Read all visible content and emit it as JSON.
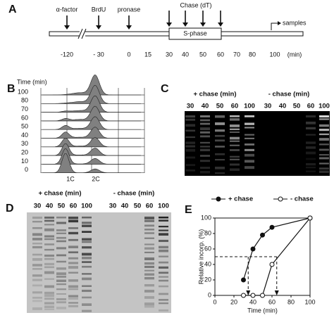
{
  "panels": {
    "a": {
      "label": "A",
      "chase": "Chase (dT)",
      "events": [
        "α-factor",
        "BrdU",
        "pronase"
      ],
      "phase": "S-phase",
      "samples": "samples",
      "times": [
        "-120",
        "- 30",
        "0",
        "15",
        "30",
        "40",
        "50",
        "60",
        "70",
        "80",
        "100",
        "(min)"
      ]
    },
    "b": {
      "label": "B",
      "axis_title": "Time (min)",
      "times": [
        "100",
        "80",
        "70",
        "60",
        "50",
        "40",
        "30",
        "20",
        "10",
        "0"
      ],
      "peaks": [
        "1C",
        "2C"
      ]
    },
    "c": {
      "label": "C",
      "groups": [
        {
          "title": "+ chase (min)",
          "lanes": [
            "30",
            "40",
            "50",
            "60",
            "100"
          ]
        },
        {
          "title": "- chase (min)",
          "lanes": [
            "30",
            "40",
            "50",
            "60",
            "100"
          ]
        }
      ]
    },
    "d": {
      "label": "D",
      "groups": [
        {
          "title": "+ chase (min)",
          "lanes": [
            "30",
            "40",
            "50",
            "60",
            "100"
          ]
        },
        {
          "title": "- chase (min)",
          "lanes": [
            "30",
            "40",
            "50",
            "60",
            "100"
          ]
        }
      ]
    },
    "e": {
      "label": "E"
    }
  },
  "chart_data": {
    "type": "line",
    "x_label": "Time (min)",
    "y_label": "Relative incorp. (%)",
    "x": [
      30,
      40,
      50,
      60,
      100
    ],
    "series": [
      {
        "name": "+ chase",
        "color": "#111111",
        "filled": true,
        "values": [
          20,
          60,
          78,
          88,
          100
        ]
      },
      {
        "name": "- chase",
        "color": "#111111",
        "filled": false,
        "values": [
          0,
          0,
          0,
          40,
          100
        ]
      }
    ],
    "xlim": [
      0,
      100
    ],
    "xticks": [
      0,
      20,
      40,
      60,
      80,
      100
    ],
    "ylim": [
      0,
      100
    ],
    "yticks": [
      0,
      20,
      40,
      60,
      80,
      100
    ],
    "half_max": {
      "y": 50,
      "x": [
        35,
        65
      ]
    }
  }
}
